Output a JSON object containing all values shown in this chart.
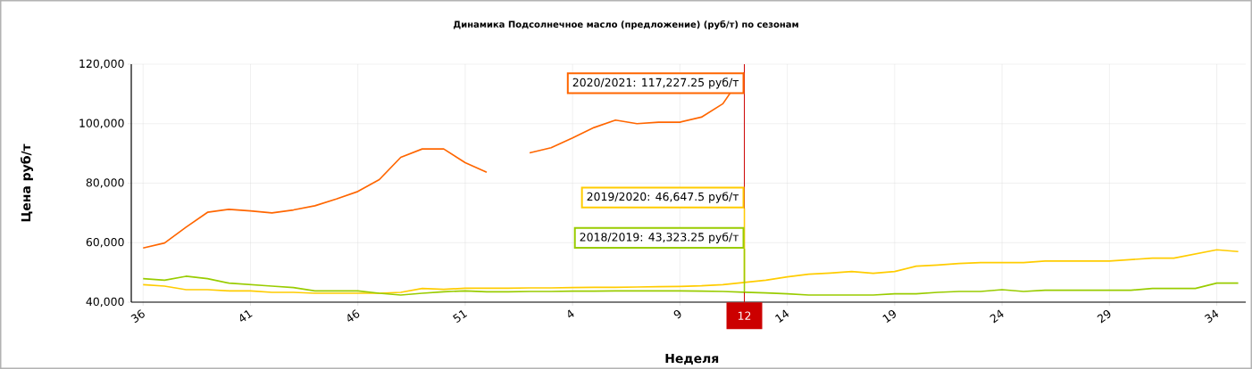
{
  "chart_data": {
    "type": "line",
    "title": "Динамика Подсолнечное масло (предложение) (руб/т) по сезонам",
    "xlabel": "Неделя",
    "ylabel": "Цена руб/т",
    "categories": [
      "36",
      null,
      null,
      null,
      null,
      "41",
      null,
      null,
      null,
      null,
      "46",
      null,
      null,
      null,
      null,
      "51",
      null,
      null,
      null,
      null,
      "4",
      null,
      null,
      null,
      null,
      "9",
      null,
      null,
      "12",
      null,
      "14",
      null,
      null,
      null,
      null,
      "19",
      null,
      null,
      null,
      null,
      "24",
      null,
      null,
      null,
      null,
      "29",
      null,
      null,
      null,
      null,
      "34",
      null
    ],
    "series": [
      {
        "color": "#ff6600",
        "values": [
          58200,
          59900,
          65200,
          70200,
          71200,
          70700,
          70000,
          71000,
          72400,
          74700,
          77200,
          81200,
          88700,
          91500,
          91500,
          86900,
          83700,
          null,
          90200,
          91900,
          95200,
          98700,
          101200,
          100000,
          100500,
          100500,
          102200,
          106700,
          117227.25,
          null,
          null,
          null,
          null,
          null,
          null,
          null,
          null,
          null,
          null,
          null,
          null,
          null,
          null,
          null,
          null,
          null,
          null,
          null,
          null,
          null,
          null,
          null
        ]
      },
      {
        "color": "#ffcc00",
        "values": [
          45900,
          45400,
          44200,
          44200,
          43800,
          43800,
          43300,
          43300,
          43000,
          43000,
          43000,
          43000,
          43300,
          44600,
          44300,
          44700,
          44700,
          44700,
          44800,
          44800,
          44900,
          45000,
          45000,
          45100,
          45200,
          45300,
          45500,
          45900,
          46647.5,
          47400,
          48500,
          49400,
          49800,
          50300,
          49700,
          50300,
          52100,
          52500,
          53000,
          53300,
          53300,
          53300,
          53800,
          53800,
          53800,
          53800,
          54300,
          54800,
          54800,
          56200,
          57600,
          57000
        ]
      },
      {
        "color": "#99cc00",
        "values": [
          47900,
          47400,
          48700,
          47900,
          46400,
          45900,
          45400,
          44900,
          43800,
          43800,
          43800,
          43000,
          42400,
          43000,
          43500,
          43800,
          43500,
          43500,
          43600,
          43600,
          43700,
          43700,
          43800,
          43800,
          43800,
          43800,
          43700,
          43600,
          43323.25,
          43100,
          42800,
          42400,
          42400,
          42400,
          42400,
          42800,
          42800,
          43300,
          43600,
          43600,
          44200,
          43600,
          44000,
          44000,
          44000,
          44000,
          44000,
          44600,
          44600,
          44600,
          46400,
          46400
        ]
      }
    ],
    "ylim": [
      40000,
      120000
    ],
    "yticks": [
      {
        "value": 40000,
        "label": "40,000"
      },
      {
        "value": 60000,
        "label": "60,000"
      },
      {
        "value": 80000,
        "label": "80,000"
      },
      {
        "value": 100000,
        "label": "100,000"
      },
      {
        "value": 120000,
        "label": "120,000"
      }
    ],
    "grid": true,
    "ref_lines": [
      {
        "axis": "x",
        "value": "12",
        "color": "#cc0000"
      }
    ],
    "annotations": [
      {
        "text": "2020/2021: 117,227.25 руб/т",
        "x": "12",
        "y": 117227.25
      },
      {
        "text": "2019/2020: 46,647.5 руб/т",
        "x": "12",
        "y": 46647.5
      },
      {
        "text": "2018/2019: 43,323.25 руб/т",
        "x": "12",
        "y": 43323.25
      }
    ]
  }
}
